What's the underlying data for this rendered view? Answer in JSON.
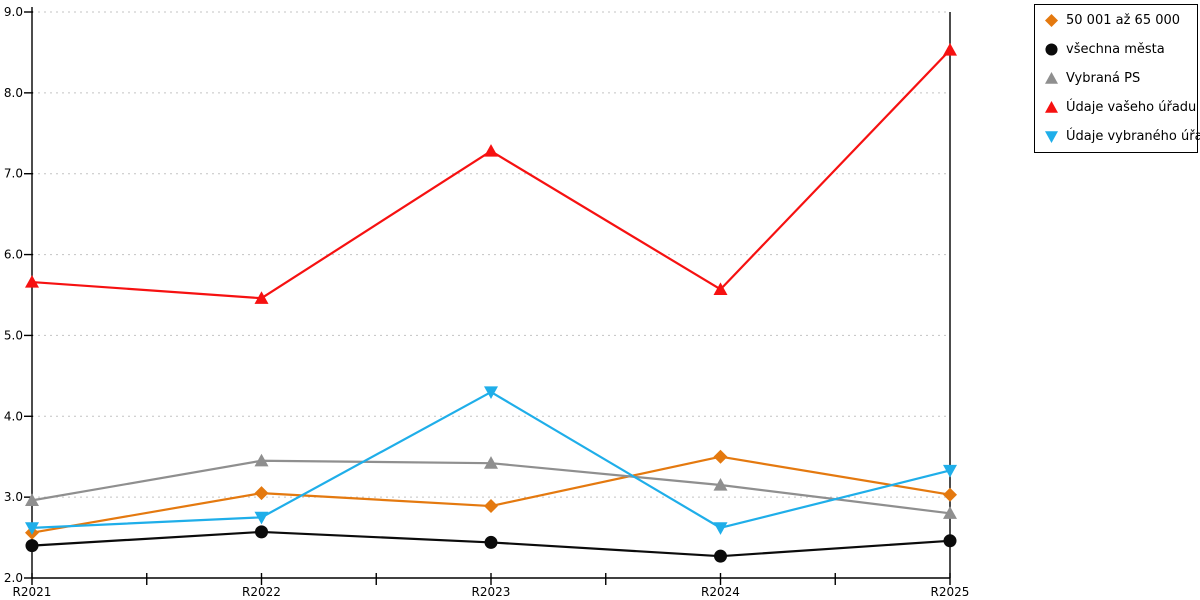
{
  "chart_data": {
    "type": "line",
    "title": "",
    "xlabel": "",
    "ylabel": "",
    "categories": [
      "R2021",
      "R2022",
      "R2023",
      "R2024",
      "R2025"
    ],
    "series": [
      {
        "name": "50 001 až 65 000",
        "marker": "diamond",
        "color": "#E4790F",
        "values": [
          2.56,
          3.05,
          2.89,
          3.5,
          3.03
        ]
      },
      {
        "name": "všechna města",
        "marker": "circle",
        "color": "#0B0B0B",
        "values": [
          2.4,
          2.57,
          2.44,
          2.27,
          2.46
        ]
      },
      {
        "name": "Vybraná PS",
        "marker": "triangle-up",
        "color": "#8F8F8F",
        "values": [
          2.96,
          3.45,
          3.42,
          3.15,
          2.8
        ]
      },
      {
        "name": "Údaje vašeho úřadu",
        "marker": "triangle-up",
        "color": "#F61111",
        "values": [
          5.66,
          5.46,
          7.28,
          5.57,
          8.53
        ]
      },
      {
        "name": "Údaje vybraného úřadu",
        "marker": "triangle-down",
        "color": "#1FAEE9",
        "values": [
          2.62,
          2.75,
          4.3,
          2.62,
          3.33
        ]
      }
    ],
    "ylim": [
      2.0,
      9.0
    ],
    "ytick_step": 1.0,
    "ytick_labels": [
      "2.0",
      "3.0",
      "4.0",
      "5.0",
      "6.0",
      "7.0",
      "8.0",
      "9.0"
    ],
    "grid": "horizontal-dotted",
    "grid_color": "#C3C3C3",
    "axis_color": "#000000",
    "legend_position": "outside-top-right",
    "has_minor_x_ticks": true
  }
}
